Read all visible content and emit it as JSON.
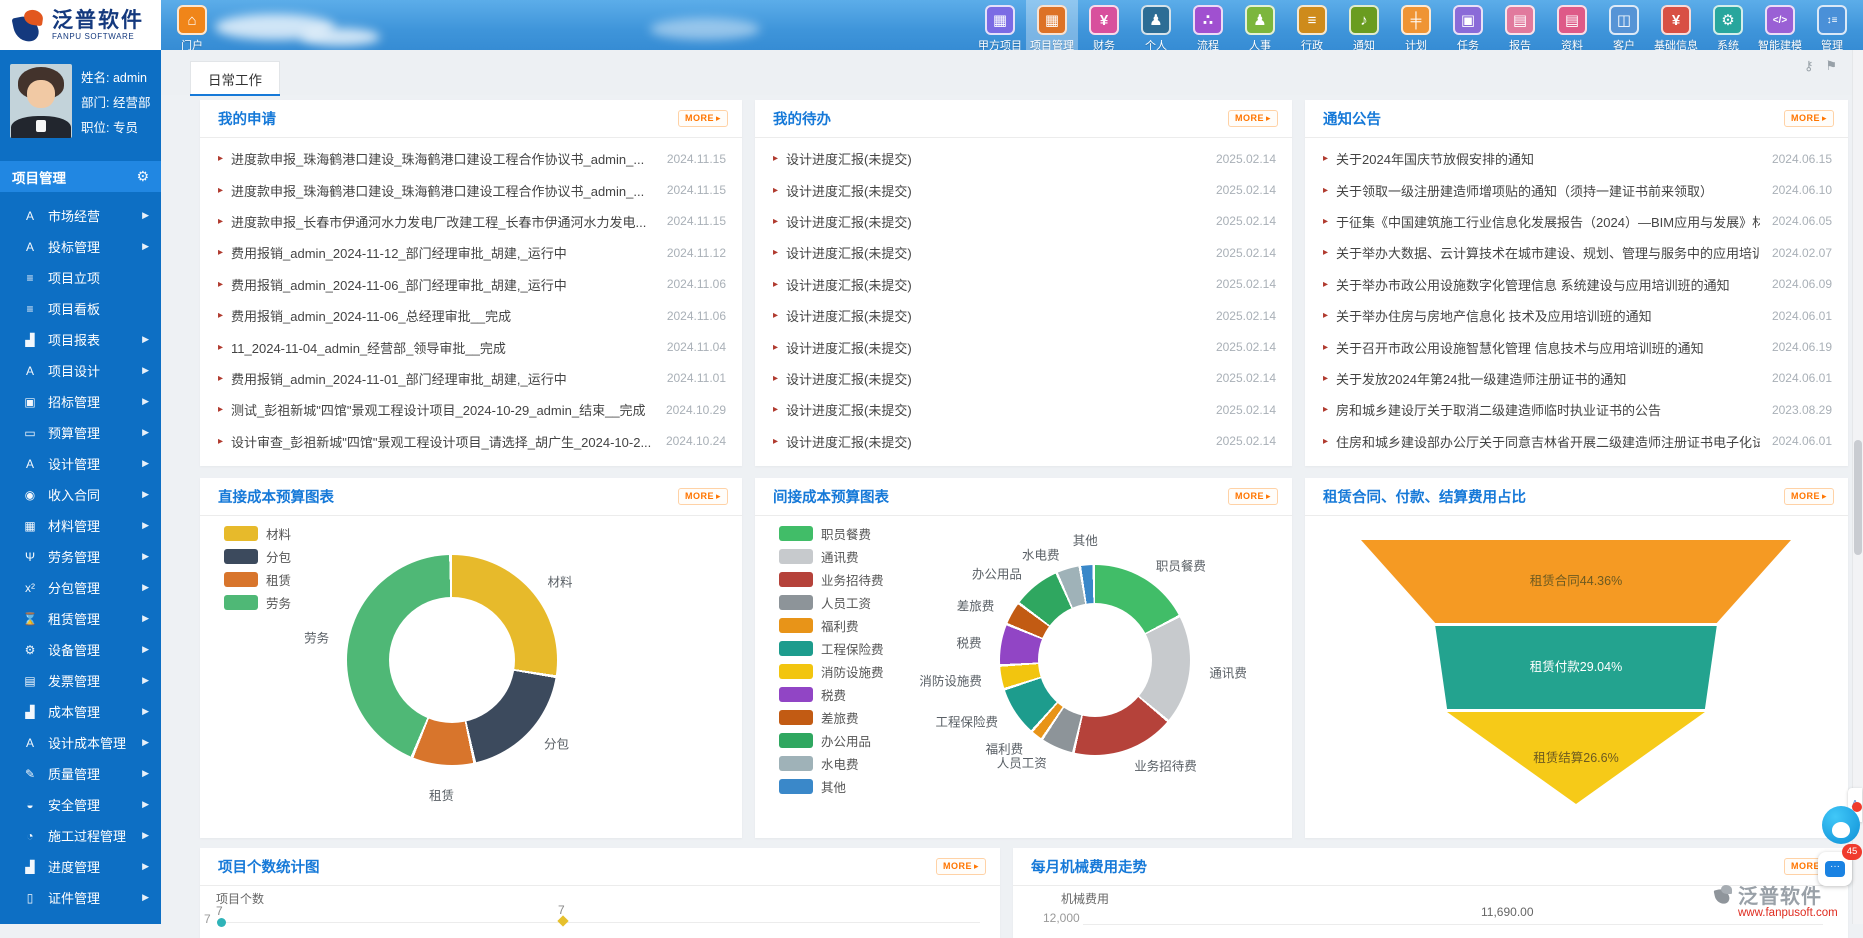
{
  "brand": {
    "name": "泛普软件",
    "name_en": "FANPU SOFTWARE",
    "site": "www.fanpusoft.com"
  },
  "topnav": {
    "home": {
      "label": "门户",
      "glyph": "⌂",
      "color": "#f08519"
    },
    "items": [
      {
        "name": "owner-projects",
        "label": "甲方项目",
        "glyph": "▦",
        "color": "#7b6be4"
      },
      {
        "name": "project-management",
        "label": "项目管理",
        "glyph": "▦",
        "color": "#dd7226",
        "active": true
      },
      {
        "name": "finance",
        "label": "财务",
        "glyph": "¥",
        "color": "#d8509d"
      },
      {
        "name": "personal",
        "label": "个人",
        "glyph": "♟",
        "color": "#2d6d95"
      },
      {
        "name": "workflow",
        "label": "流程",
        "glyph": "∴",
        "color": "#a050d0"
      },
      {
        "name": "hr",
        "label": "人事",
        "glyph": "♟",
        "color": "#7cb63d"
      },
      {
        "name": "administration",
        "label": "行政",
        "glyph": "≡",
        "color": "#ce8b1b"
      },
      {
        "name": "notification",
        "label": "通知",
        "glyph": "♪",
        "color": "#6a9c20"
      },
      {
        "name": "plan",
        "label": "计划",
        "glyph": "╪",
        "color": "#ef9434"
      },
      {
        "name": "task",
        "label": "任务",
        "glyph": "▣",
        "color": "#8a6bd8"
      },
      {
        "name": "report",
        "label": "报告",
        "glyph": "▤",
        "color": "#e17a9d"
      },
      {
        "name": "documents",
        "label": "资料",
        "glyph": "▤",
        "color": "#de5a88"
      },
      {
        "name": "customer",
        "label": "客户",
        "glyph": "◫",
        "color": "#5694d6"
      },
      {
        "name": "basic-info",
        "label": "基础信息",
        "glyph": "¥",
        "color": "#d85045"
      },
      {
        "name": "system",
        "label": "系统",
        "glyph": "⚙",
        "color": "#28a69d"
      },
      {
        "name": "smart-modeling",
        "label": "智能建模",
        "glyph": "</>",
        "color": "#9a60d5"
      },
      {
        "name": "management",
        "label": "管理",
        "glyph": "↕≡",
        "color": "#4a90d8"
      }
    ]
  },
  "user": {
    "name": "姓名: admin",
    "dept": "部门: 经营部",
    "title": "职位: 专员"
  },
  "sidebar": {
    "section": "项目管理",
    "items": [
      {
        "name": "market-operation",
        "label": "市场经营",
        "glyph": "A",
        "arrow": true
      },
      {
        "name": "bidding-management",
        "label": "投标管理",
        "glyph": "A",
        "arrow": true
      },
      {
        "name": "project-initiation",
        "label": "项目立项",
        "glyph": "≡",
        "arrow": false
      },
      {
        "name": "project-board",
        "label": "项目看板",
        "glyph": "≡",
        "arrow": false
      },
      {
        "name": "project-reports",
        "label": "项目报表",
        "glyph": "▟",
        "arrow": true
      },
      {
        "name": "project-design",
        "label": "项目设计",
        "glyph": "A",
        "arrow": true
      },
      {
        "name": "tender-management",
        "label": "招标管理",
        "glyph": "▣",
        "arrow": true
      },
      {
        "name": "budget-management",
        "label": "预算管理",
        "glyph": "▭",
        "arrow": true
      },
      {
        "name": "design-management",
        "label": "设计管理",
        "glyph": "A",
        "arrow": true
      },
      {
        "name": "income-contract",
        "label": "收入合同",
        "glyph": "◉",
        "arrow": true
      },
      {
        "name": "material-management",
        "label": "材料管理",
        "glyph": "▦",
        "arrow": true
      },
      {
        "name": "labor-management",
        "label": "劳务管理",
        "glyph": "Ψ",
        "arrow": true
      },
      {
        "name": "subcontract-management",
        "label": "分包管理",
        "glyph": "x²",
        "arrow": true
      },
      {
        "name": "rental-management",
        "label": "租赁管理",
        "glyph": "⌛",
        "arrow": true
      },
      {
        "name": "equipment-management",
        "label": "设备管理",
        "glyph": "⚙",
        "arrow": true
      },
      {
        "name": "invoice-management",
        "label": "发票管理",
        "glyph": "▤",
        "arrow": true
      },
      {
        "name": "cost-management",
        "label": "成本管理",
        "glyph": "▟",
        "arrow": true
      },
      {
        "name": "design-cost-management",
        "label": "设计成本管理",
        "glyph": "A",
        "arrow": true
      },
      {
        "name": "quality-management",
        "label": "质量管理",
        "glyph": "✎",
        "arrow": true
      },
      {
        "name": "safety-management",
        "label": "安全管理",
        "glyph": "◒",
        "arrow": true
      },
      {
        "name": "construction-process-management",
        "label": "施工过程管理",
        "glyph": "◔",
        "arrow": true
      },
      {
        "name": "schedule-management",
        "label": "进度管理",
        "glyph": "▟",
        "arrow": true
      },
      {
        "name": "certificate-management",
        "label": "证件管理",
        "glyph": "▯",
        "arrow": true
      }
    ]
  },
  "tabs": {
    "active": "日常工作"
  },
  "panels": {
    "my_applications": {
      "title": "我的申请",
      "more": "MORE",
      "items": [
        {
          "text": "进度款申报_珠海鹤港口建设_珠海鹤港口建设工程合作协议书_admin_...",
          "date": "2024.11.15"
        },
        {
          "text": "进度款申报_珠海鹤港口建设_珠海鹤港口建设工程合作协议书_admin_...",
          "date": "2024.11.15"
        },
        {
          "text": "进度款申报_长春市伊通河水力发电厂改建工程_长春市伊通河水力发电...",
          "date": "2024.11.15"
        },
        {
          "text": "费用报销_admin_2024-11-12_部门经理审批_胡建,_运行中",
          "date": "2024.11.12"
        },
        {
          "text": "费用报销_admin_2024-11-06_部门经理审批_胡建,_运行中",
          "date": "2024.11.06"
        },
        {
          "text": "费用报销_admin_2024-11-06_总经理审批__完成",
          "date": "2024.11.06"
        },
        {
          "text": "11_2024-11-04_admin_经营部_领导审批__完成",
          "date": "2024.11.04"
        },
        {
          "text": "费用报销_admin_2024-11-01_部门经理审批_胡建,_运行中",
          "date": "2024.11.01"
        },
        {
          "text": "测试_彭祖新城\"四馆\"景观工程设计项目_2024-10-29_admin_结束__完成",
          "date": "2024.10.29"
        },
        {
          "text": "设计审查_彭祖新城\"四馆\"景观工程设计项目_请选择_胡广生_2024-10-2...",
          "date": "2024.10.24"
        }
      ]
    },
    "my_todo": {
      "title": "我的待办",
      "more": "MORE",
      "items": [
        {
          "text": "设计进度汇报(未提交)",
          "date": "2025.02.14"
        },
        {
          "text": "设计进度汇报(未提交)",
          "date": "2025.02.14"
        },
        {
          "text": "设计进度汇报(未提交)",
          "date": "2025.02.14"
        },
        {
          "text": "设计进度汇报(未提交)",
          "date": "2025.02.14"
        },
        {
          "text": "设计进度汇报(未提交)",
          "date": "2025.02.14"
        },
        {
          "text": "设计进度汇报(未提交)",
          "date": "2025.02.14"
        },
        {
          "text": "设计进度汇报(未提交)",
          "date": "2025.02.14"
        },
        {
          "text": "设计进度汇报(未提交)",
          "date": "2025.02.14"
        },
        {
          "text": "设计进度汇报(未提交)",
          "date": "2025.02.14"
        },
        {
          "text": "设计进度汇报(未提交)",
          "date": "2025.02.14"
        }
      ]
    },
    "notices": {
      "title": "通知公告",
      "more": "MORE",
      "items": [
        {
          "text": "关于2024年国庆节放假安排的通知",
          "date": "2024.06.15"
        },
        {
          "text": "关于领取一级注册建造师增项贴的通知（须持一建证书前来领取）",
          "date": "2024.06.10"
        },
        {
          "text": "于征集《中国建筑施工行业信息化发展报告（2024）—BIM应用与发展》材料...",
          "date": "2024.06.05"
        },
        {
          "text": "关于举办大数据、云计算技术在城市建设、规划、管理与服务中的应用培训班...",
          "date": "2024.02.07"
        },
        {
          "text": "关于举办市政公用设施数字化管理信息 系统建设与应用培训班的通知",
          "date": "2024.06.09"
        },
        {
          "text": "关于举办住房与房地产信息化 技术及应用培训班的通知",
          "date": "2024.06.01"
        },
        {
          "text": "关于召开市政公用设施智慧化管理 信息技术与应用培训班的通知",
          "date": "2024.06.19"
        },
        {
          "text": "关于发放2024年第24批一级建造师注册证书的通知",
          "date": "2024.06.01"
        },
        {
          "text": "房和城乡建设厅关于取消二级建造师临时执业证书的公告",
          "date": "2023.08.29"
        },
        {
          "text": "住房和城乡建设部办公厅关于同意吉林省开展二级建造师注册证书电子化试点...",
          "date": "2024.06.01"
        }
      ]
    },
    "direct_cost": {
      "title": "直接成本预算图表",
      "more": "MORE"
    },
    "indirect_cost": {
      "title": "间接成本预算图表",
      "more": "MORE"
    },
    "rental_funnel": {
      "title": "租赁合同、付款、结算费用占比",
      "more": "MORE"
    },
    "project_count": {
      "title": "项目个数统计图",
      "more": "MORE",
      "ylabel": "项目个数",
      "y_tick": "7",
      "point_labels": [
        "7",
        "7"
      ]
    },
    "machine_cost": {
      "title": "每月机械费用走势",
      "more": "MORE",
      "ylabel": "机械费用",
      "y_tick": "12,000",
      "point_label": "11,690.00"
    }
  },
  "floating": {
    "chat_badge": "45"
  },
  "chart_data": [
    {
      "id": "direct_cost_donut",
      "type": "pie",
      "title": "直接成本预算图表",
      "donut": true,
      "legend_position": "left",
      "slices": [
        {
          "label": "材料",
          "value": 27.8,
          "color": "#e7ba2b"
        },
        {
          "label": "分包",
          "value": 18.9,
          "color": "#3c4a5d"
        },
        {
          "label": "租赁",
          "value": 9.4,
          "color": "#d8752c"
        },
        {
          "label": "劳务",
          "value": 43.9,
          "color": "#4fb876"
        }
      ],
      "note": "no numeric labels shown; proportions estimated from arc angles"
    },
    {
      "id": "indirect_cost_donut",
      "type": "pie",
      "title": "间接成本预算图表",
      "donut": true,
      "legend_position": "left",
      "slices": [
        {
          "label": "职员餐费",
          "value": 18.1,
          "color": "#41bd68"
        },
        {
          "label": "通讯费",
          "value": 19.3,
          "color": "#c7cacd"
        },
        {
          "label": "业务招待费",
          "value": 18.1,
          "color": "#b5423a"
        },
        {
          "label": "人员工资",
          "value": 5.6,
          "color": "#8d9499"
        },
        {
          "label": "福利费",
          "value": 1.8,
          "color": "#e89418"
        },
        {
          "label": "工程保险费",
          "value": 8.5,
          "color": "#1d9c8d"
        },
        {
          "label": "消防设施费",
          "value": 3.8,
          "color": "#f2c50f"
        },
        {
          "label": "税费",
          "value": 7.0,
          "color": "#9145c5"
        },
        {
          "label": "差旅费",
          "value": 3.8,
          "color": "#c25b13"
        },
        {
          "label": "办公用品",
          "value": 8.2,
          "color": "#2fa760"
        },
        {
          "label": "水电费",
          "value": 3.8,
          "color": "#9fb2b8"
        },
        {
          "label": "其他",
          "value": 2.0,
          "color": "#3a88c9"
        }
      ],
      "note": "no numeric labels shown; proportions estimated from arc angles"
    },
    {
      "id": "rental_funnel",
      "type": "funnel",
      "title": "租赁合同、付款、结算费用占比",
      "levels": [
        {
          "label": "租赁合同",
          "pct": 44.36,
          "display": "租赁合同44.36%",
          "color": "#f59a23",
          "text_color": "#6d5a20"
        },
        {
          "label": "租赁付款",
          "pct": 29.04,
          "display": "租赁付款29.04%",
          "color": "#23a38f",
          "text_color": "#ffffff"
        },
        {
          "label": "租赁结算",
          "pct": 26.6,
          "display": "租赁结算26.6%",
          "color": "#f6ca18",
          "text_color": "#6d5a20"
        }
      ]
    },
    {
      "id": "project_count",
      "type": "line",
      "title": "项目个数统计图",
      "ylabel": "项目个数",
      "y_tick": "7",
      "visible_values": [
        7,
        7
      ],
      "note": "chart body cut off at bottom of screenshot; two points labelled 7 visible"
    },
    {
      "id": "machine_cost",
      "type": "line",
      "title": "每月机械费用走势",
      "ylabel": "机械费用",
      "y_tick": "12,000",
      "visible_values": [
        11690.0
      ],
      "visible_value_label": "11,690.00",
      "note": "chart body cut off at bottom of screenshot"
    }
  ]
}
